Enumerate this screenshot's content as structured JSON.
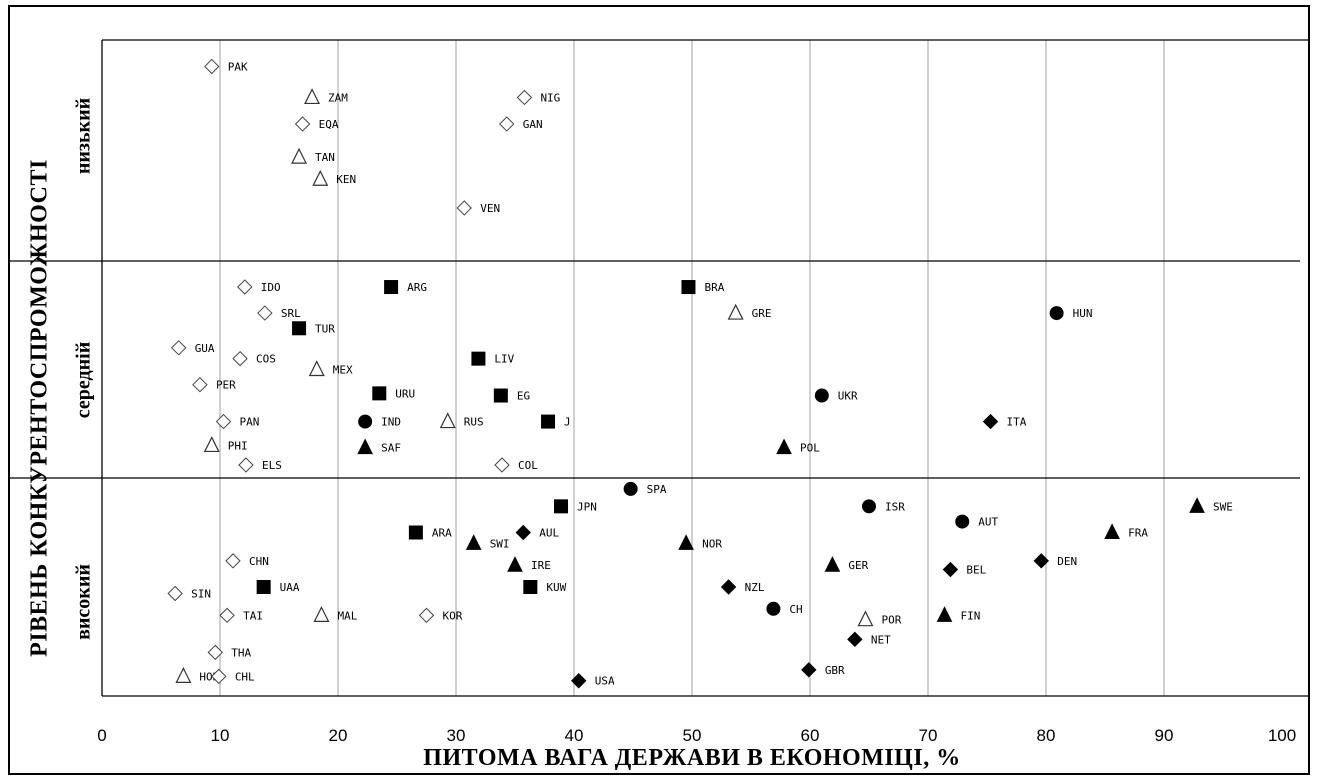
{
  "chart_data": {
    "type": "scatter",
    "xlabel": "ПИТОМА ВАГА ДЕРЖАВИ  В  ЕКОНОМІЦІ, %",
    "ylabel": "РІВЕНЬ КОНКУРЕНТОСПРОМОЖНОСТІ",
    "xlim": [
      0,
      100
    ],
    "x_ticks": [
      "0",
      "10",
      "20",
      "30",
      "40",
      "50",
      "60",
      "70",
      "80",
      "90",
      "100"
    ],
    "grid": "vertical gridlines at every 10",
    "bands": [
      {
        "key": "low",
        "label": "низький"
      },
      {
        "key": "medium",
        "label": "середній"
      },
      {
        "key": "high",
        "label": "високий"
      }
    ],
    "markers": {
      "diamond_open": "open diamond",
      "triangle_open": "open triangle",
      "square_filled": "filled square",
      "circle_filled": "filled circle",
      "triangle_filled": "filled triangle",
      "diamond_filled": "filled diamond"
    },
    "points": [
      {
        "label": "PAK",
        "x": 9.3,
        "band": "low",
        "level": 0.12,
        "marker": "diamond_open"
      },
      {
        "label": "ZAM",
        "x": 17.8,
        "band": "low",
        "level": 0.26,
        "marker": "triangle_open"
      },
      {
        "label": "NIG",
        "x": 35.8,
        "band": "low",
        "level": 0.26,
        "marker": "diamond_open"
      },
      {
        "label": "EQA",
        "x": 17.0,
        "band": "low",
        "level": 0.38,
        "marker": "diamond_open"
      },
      {
        "label": "GAN",
        "x": 34.3,
        "band": "low",
        "level": 0.38,
        "marker": "diamond_open"
      },
      {
        "label": "TAN",
        "x": 16.7,
        "band": "low",
        "level": 0.53,
        "marker": "triangle_open"
      },
      {
        "label": "KEN",
        "x": 18.5,
        "band": "low",
        "level": 0.63,
        "marker": "triangle_open"
      },
      {
        "label": "VEN",
        "x": 30.7,
        "band": "low",
        "level": 0.76,
        "marker": "diamond_open"
      },
      {
        "label": "IDO",
        "x": 12.1,
        "band": "medium",
        "level": 0.12,
        "marker": "diamond_open"
      },
      {
        "label": "ARG",
        "x": 24.5,
        "band": "medium",
        "level": 0.12,
        "marker": "square_filled"
      },
      {
        "label": "BRA",
        "x": 49.7,
        "band": "medium",
        "level": 0.12,
        "marker": "square_filled"
      },
      {
        "label": "SRL",
        "x": 13.8,
        "band": "medium",
        "level": 0.24,
        "marker": "diamond_open"
      },
      {
        "label": "GRE",
        "x": 53.7,
        "band": "medium",
        "level": 0.24,
        "marker": "triangle_open"
      },
      {
        "label": "HUN",
        "x": 80.9,
        "band": "medium",
        "level": 0.24,
        "marker": "circle_filled"
      },
      {
        "label": "TUR",
        "x": 16.7,
        "band": "medium",
        "level": 0.31,
        "marker": "square_filled"
      },
      {
        "label": "GUA",
        "x": 6.5,
        "band": "medium",
        "level": 0.4,
        "marker": "diamond_open"
      },
      {
        "label": "COS",
        "x": 11.7,
        "band": "medium",
        "level": 0.45,
        "marker": "diamond_open"
      },
      {
        "label": "LIV",
        "x": 31.9,
        "band": "medium",
        "level": 0.45,
        "marker": "square_filled"
      },
      {
        "label": "MEX",
        "x": 18.2,
        "band": "medium",
        "level": 0.5,
        "marker": "triangle_open"
      },
      {
        "label": "PER",
        "x": 8.3,
        "band": "medium",
        "level": 0.57,
        "marker": "diamond_open"
      },
      {
        "label": "URU",
        "x": 23.5,
        "band": "medium",
        "level": 0.61,
        "marker": "square_filled"
      },
      {
        "label": "EG",
        "x": 33.8,
        "band": "medium",
        "level": 0.62,
        "marker": "square_filled"
      },
      {
        "label": "UKR",
        "x": 61.0,
        "band": "medium",
        "level": 0.62,
        "marker": "circle_filled"
      },
      {
        "label": "PAN",
        "x": 10.3,
        "band": "medium",
        "level": 0.74,
        "marker": "diamond_open"
      },
      {
        "label": "IND",
        "x": 22.3,
        "band": "medium",
        "level": 0.74,
        "marker": "circle_filled"
      },
      {
        "label": "RUS",
        "x": 29.3,
        "band": "medium",
        "level": 0.74,
        "marker": "triangle_open"
      },
      {
        "label": "J",
        "x": 37.8,
        "band": "medium",
        "level": 0.74,
        "marker": "square_filled"
      },
      {
        "label": "ITA",
        "x": 75.3,
        "band": "medium",
        "level": 0.74,
        "marker": "diamond_filled"
      },
      {
        "label": "PHI",
        "x": 9.3,
        "band": "medium",
        "level": 0.85,
        "marker": "triangle_open"
      },
      {
        "label": "SAF",
        "x": 22.3,
        "band": "medium",
        "level": 0.86,
        "marker": "triangle_filled"
      },
      {
        "label": "POL",
        "x": 57.8,
        "band": "medium",
        "level": 0.86,
        "marker": "triangle_filled"
      },
      {
        "label": "ELS",
        "x": 12.2,
        "band": "medium",
        "level": 0.94,
        "marker": "diamond_open"
      },
      {
        "label": "COL",
        "x": 33.9,
        "band": "medium",
        "level": 0.94,
        "marker": "diamond_open"
      },
      {
        "label": "SPA",
        "x": 44.8,
        "band": "high",
        "level": 0.05,
        "marker": "circle_filled"
      },
      {
        "label": "JPN",
        "x": 38.9,
        "band": "high",
        "level": 0.13,
        "marker": "square_filled"
      },
      {
        "label": "ISR",
        "x": 65.0,
        "band": "high",
        "level": 0.13,
        "marker": "circle_filled"
      },
      {
        "label": "SWE",
        "x": 92.8,
        "band": "high",
        "level": 0.13,
        "marker": "triangle_filled"
      },
      {
        "label": "AUT",
        "x": 72.9,
        "band": "high",
        "level": 0.2,
        "marker": "circle_filled"
      },
      {
        "label": "ARA",
        "x": 26.6,
        "band": "high",
        "level": 0.25,
        "marker": "square_filled"
      },
      {
        "label": "AUL",
        "x": 35.7,
        "band": "high",
        "level": 0.25,
        "marker": "diamond_filled"
      },
      {
        "label": "FRA",
        "x": 85.6,
        "band": "high",
        "level": 0.25,
        "marker": "triangle_filled"
      },
      {
        "label": "SWI",
        "x": 31.5,
        "band": "high",
        "level": 0.3,
        "marker": "triangle_filled"
      },
      {
        "label": "NOR",
        "x": 49.5,
        "band": "high",
        "level": 0.3,
        "marker": "triangle_filled"
      },
      {
        "label": "CHN",
        "x": 11.1,
        "band": "high",
        "level": 0.38,
        "marker": "diamond_open"
      },
      {
        "label": "DEN",
        "x": 79.6,
        "band": "high",
        "level": 0.38,
        "marker": "diamond_filled"
      },
      {
        "label": "IRE",
        "x": 35.0,
        "band": "high",
        "level": 0.4,
        "marker": "triangle_filled"
      },
      {
        "label": "GER",
        "x": 61.9,
        "band": "high",
        "level": 0.4,
        "marker": "triangle_filled"
      },
      {
        "label": "BEL",
        "x": 71.9,
        "band": "high",
        "level": 0.42,
        "marker": "diamond_filled"
      },
      {
        "label": "UAA",
        "x": 13.7,
        "band": "high",
        "level": 0.5,
        "marker": "square_filled"
      },
      {
        "label": "KUW",
        "x": 36.3,
        "band": "high",
        "level": 0.5,
        "marker": "square_filled"
      },
      {
        "label": "NZL",
        "x": 53.1,
        "band": "high",
        "level": 0.5,
        "marker": "diamond_filled"
      },
      {
        "label": "SIN",
        "x": 6.2,
        "band": "high",
        "level": 0.53,
        "marker": "diamond_open"
      },
      {
        "label": "CH",
        "x": 56.9,
        "band": "high",
        "level": 0.6,
        "marker": "circle_filled"
      },
      {
        "label": "TAI",
        "x": 10.6,
        "band": "high",
        "level": 0.63,
        "marker": "diamond_open"
      },
      {
        "label": "MAL",
        "x": 18.6,
        "band": "high",
        "level": 0.63,
        "marker": "triangle_open"
      },
      {
        "label": "KOR",
        "x": 27.5,
        "band": "high",
        "level": 0.63,
        "marker": "diamond_open"
      },
      {
        "label": "FIN",
        "x": 71.4,
        "band": "high",
        "level": 0.63,
        "marker": "triangle_filled"
      },
      {
        "label": "POR",
        "x": 64.7,
        "band": "high",
        "level": 0.65,
        "marker": "triangle_open"
      },
      {
        "label": "NET",
        "x": 63.8,
        "band": "high",
        "level": 0.74,
        "marker": "diamond_filled"
      },
      {
        "label": "THA",
        "x": 9.6,
        "band": "high",
        "level": 0.8,
        "marker": "diamond_open"
      },
      {
        "label": "GBR",
        "x": 59.9,
        "band": "high",
        "level": 0.88,
        "marker": "diamond_filled"
      },
      {
        "label": "HOK",
        "x": 6.9,
        "band": "high",
        "level": 0.91,
        "marker": "triangle_open"
      },
      {
        "label": "CHL",
        "x": 9.9,
        "band": "high",
        "level": 0.91,
        "marker": "diamond_open"
      },
      {
        "label": "USA",
        "x": 40.4,
        "band": "high",
        "level": 0.93,
        "marker": "diamond_filled"
      }
    ]
  }
}
